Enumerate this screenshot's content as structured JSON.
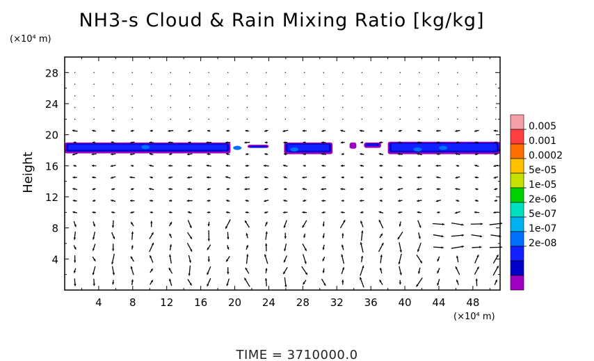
{
  "chart_data": {
    "type": "contour_with_vectors",
    "title": "NH3-s Cloud & Rain Mixing Ratio [kg/kg]",
    "ylabel": "Height",
    "x_unit": "(×10⁴ m)",
    "y_unit": "(×10⁴ m)",
    "x_ticks": [
      "4",
      "8",
      "12",
      "16",
      "20",
      "24",
      "28",
      "32",
      "36",
      "40",
      "44",
      "48"
    ],
    "y_ticks": [
      "4",
      "8",
      "12",
      "16",
      "20",
      "24",
      "28"
    ],
    "xlim": [
      0,
      51.2
    ],
    "ylim": [
      0,
      30
    ],
    "colorbar_labels": [
      "0.005",
      "0.001",
      "0.0002",
      "5e-05",
      "1e-05",
      "2e-06",
      "5e-07",
      "1e-07",
      "2e-08"
    ],
    "colorbar_colors": [
      "#f4a0a8",
      "#ff4040",
      "#ff7000",
      "#ffc000",
      "#c8e000",
      "#00d000",
      "#00e0c0",
      "#00b0f0",
      "#0070ff",
      "#1020ff",
      "#0000c8",
      "#a000c0"
    ],
    "cloud_layer": [
      {
        "x0": 0,
        "x1": 19.5,
        "y0": 17.6,
        "y1": 19.0
      },
      {
        "x0": 21.5,
        "x1": 24,
        "y0": 18.3,
        "y1": 18.7
      },
      {
        "x0": 25.8,
        "x1": 31.5,
        "y0": 17.5,
        "y1": 19.0
      },
      {
        "x0": 33.5,
        "x1": 34.3,
        "y0": 18.2,
        "y1": 19.0
      },
      {
        "x0": 35.2,
        "x1": 37.2,
        "y0": 18.3,
        "y1": 19.0
      },
      {
        "x0": 38,
        "x1": 51.2,
        "y0": 17.5,
        "y1": 19.1
      }
    ],
    "time_label": "TIME  =  3710000.0"
  }
}
